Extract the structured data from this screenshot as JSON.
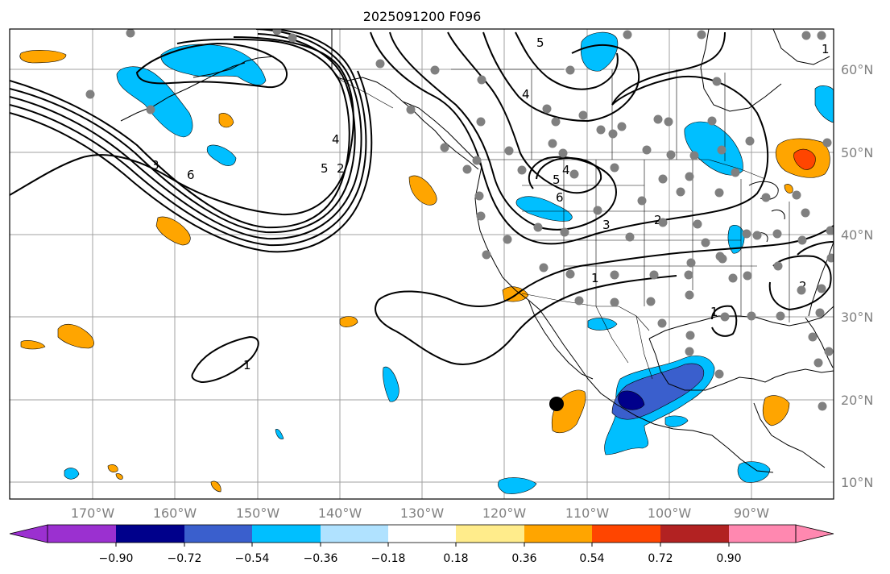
{
  "title": "2025091200 F096",
  "axes": {
    "lon_labels": [
      "170°W",
      "160°W",
      "150°W",
      "140°W",
      "130°W",
      "120°W",
      "110°W",
      "100°W",
      "90°W"
    ],
    "lat_labels": [
      "60°N",
      "50°N",
      "40°N",
      "30°N",
      "20°N",
      "10°N"
    ]
  },
  "colorbar": {
    "tick_labels": [
      "−0.90",
      "−0.72",
      "−0.54",
      "−0.36",
      "−0.18",
      "0.18",
      "0.36",
      "0.54",
      "0.72",
      "0.90"
    ],
    "colors": [
      "#9b30d0",
      "#00008b",
      "#3a5fcd",
      "#00bfff",
      "#b0e2ff",
      "#ffffff",
      "#ffec8b",
      "#ffa500",
      "#ff4500",
      "#b22222",
      "#ff88b0"
    ]
  },
  "contours": {
    "labels": [
      "1",
      "2",
      "3",
      "4",
      "5",
      "6"
    ]
  },
  "marker_colors": {
    "station": "#808080",
    "storm": "#000000"
  }
}
